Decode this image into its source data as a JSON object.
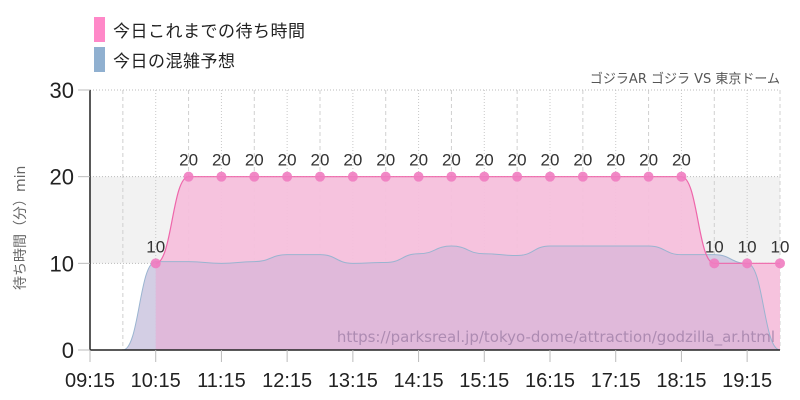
{
  "legend": [
    {
      "label": "今日これまでの待ち時間",
      "color": "#ff88c8"
    },
    {
      "label": "今日の混雑予想",
      "color": "#90b0d0"
    }
  ],
  "subtitle": "ゴジラAR ゴジラ VS 東京ドーム",
  "ylabel": "待ち時間（分）min",
  "watermark": "https://parksreal.jp/tokyo-dome/attraction/godzilla_ar.html",
  "colors": {
    "actual_line": "#ee66aa",
    "actual_fill": "#f5c0dc",
    "actual_marker": "#f07cc0",
    "forecast_line": "#9ab4d0",
    "forecast_fill": "#d8e4ee",
    "overlap_fill": "#dcc0dc",
    "band": "#f2f2f2"
  },
  "chart_data": {
    "type": "area",
    "title": "ゴジラAR ゴジラ VS 東京ドーム",
    "xlabel": "",
    "ylabel": "待ち時間（分）min",
    "ylim": [
      0,
      30
    ],
    "yticks": [
      0,
      10,
      20,
      30
    ],
    "xticks": [
      "09:15",
      "10:15",
      "11:15",
      "12:15",
      "13:15",
      "14:15",
      "15:15",
      "16:15",
      "17:15",
      "18:15",
      "19:15"
    ],
    "legend_position": "top-left",
    "grid": true,
    "series": [
      {
        "name": "今日これまでの待ち時間",
        "type": "area-line-markers",
        "x": [
          "10:15",
          "10:45",
          "11:15",
          "11:45",
          "12:15",
          "12:45",
          "13:15",
          "13:45",
          "14:15",
          "14:45",
          "15:15",
          "15:45",
          "16:15",
          "16:45",
          "17:15",
          "17:45",
          "18:15",
          "18:45",
          "19:15",
          "19:45"
        ],
        "values": [
          10,
          20,
          20,
          20,
          20,
          20,
          20,
          20,
          20,
          20,
          20,
          20,
          20,
          20,
          20,
          20,
          20,
          10,
          10,
          10
        ],
        "data_labels": true
      },
      {
        "name": "今日の混雑予想",
        "type": "area",
        "x": [
          "09:15",
          "09:45",
          "10:15",
          "10:45",
          "11:15",
          "11:45",
          "12:15",
          "12:45",
          "13:15",
          "13:45",
          "14:15",
          "14:45",
          "15:15",
          "15:45",
          "16:15",
          "16:45",
          "17:15",
          "17:45",
          "18:15",
          "18:45",
          "19:15",
          "19:45"
        ],
        "values": [
          0,
          0,
          10.2,
          10.2,
          10,
          10.2,
          11,
          11,
          10,
          10.1,
          11.1,
          12,
          11.1,
          10.9,
          12,
          12,
          12,
          12,
          11,
          11,
          10,
          0
        ]
      }
    ]
  }
}
